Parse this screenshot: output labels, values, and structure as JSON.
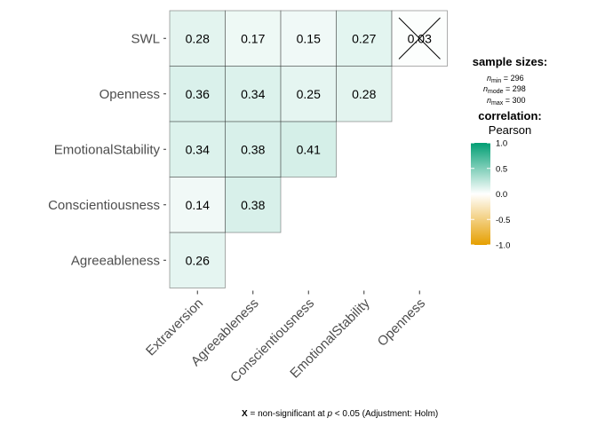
{
  "chart_data": {
    "type": "heatmap",
    "x_labels": [
      "Extraversion",
      "Agreeableness",
      "Conscientiousness",
      "EmotionalStability",
      "Openness"
    ],
    "y_labels": [
      "Agreeableness",
      "Conscientiousness",
      "EmotionalStability",
      "Openness",
      "SWL"
    ],
    "cells": [
      {
        "x": "Extraversion",
        "y": "SWL",
        "value": 0.28,
        "label": "0.28",
        "significant": true
      },
      {
        "x": "Agreeableness",
        "y": "SWL",
        "value": 0.17,
        "label": "0.17",
        "significant": true
      },
      {
        "x": "Conscientiousness",
        "y": "SWL",
        "value": 0.15,
        "label": "0.15",
        "significant": true
      },
      {
        "x": "EmotionalStability",
        "y": "SWL",
        "value": 0.27,
        "label": "0.27",
        "significant": true
      },
      {
        "x": "Openness",
        "y": "SWL",
        "value": 0.03,
        "label": "0.03",
        "significant": false
      },
      {
        "x": "Extraversion",
        "y": "Openness",
        "value": 0.36,
        "label": "0.36",
        "significant": true
      },
      {
        "x": "Agreeableness",
        "y": "Openness",
        "value": 0.34,
        "label": "0.34",
        "significant": true
      },
      {
        "x": "Conscientiousness",
        "y": "Openness",
        "value": 0.25,
        "label": "0.25",
        "significant": true
      },
      {
        "x": "EmotionalStability",
        "y": "Openness",
        "value": 0.28,
        "label": "0.28",
        "significant": true
      },
      {
        "x": "Extraversion",
        "y": "EmotionalStability",
        "value": 0.34,
        "label": "0.34",
        "significant": true
      },
      {
        "x": "Agreeableness",
        "y": "EmotionalStability",
        "value": 0.38,
        "label": "0.38",
        "significant": true
      },
      {
        "x": "Conscientiousness",
        "y": "EmotionalStability",
        "value": 0.41,
        "label": "0.41",
        "significant": true
      },
      {
        "x": "Extraversion",
        "y": "Conscientiousness",
        "value": 0.14,
        "label": "0.14",
        "significant": true
      },
      {
        "x": "Agreeableness",
        "y": "Conscientiousness",
        "value": 0.38,
        "label": "0.38",
        "significant": true
      },
      {
        "x": "Extraversion",
        "y": "Agreeableness",
        "value": 0.26,
        "label": "0.26",
        "significant": true
      }
    ],
    "color_scale": {
      "low": "#E69F00",
      "mid": "#FFFFFF",
      "high": "#009E73",
      "limits": [
        -1,
        1
      ]
    },
    "legend": {
      "sample_title": "sample sizes:",
      "n_min": "296",
      "n_mode": "298",
      "n_max": "300",
      "corr_title": "correlation:",
      "corr_method": "Pearson",
      "ticks": [
        "1.0",
        "0.5",
        "0.0",
        "-0.5",
        "-1.0"
      ]
    },
    "caption": {
      "prefix": "X",
      "middle": " = non-significant at ",
      "p": "p",
      "suffix": " < 0.05 (Adjustment: Holm)"
    }
  }
}
